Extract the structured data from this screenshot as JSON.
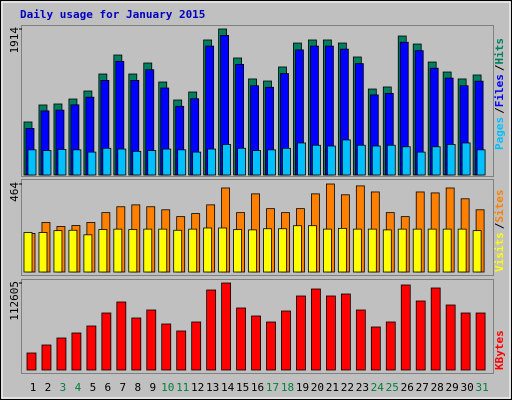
{
  "title": "Daily usage for January 2015",
  "separator": "/",
  "chart_data": [
    {
      "type": "bar",
      "ylim": [
        0,
        1914
      ],
      "yticks": [
        1914
      ],
      "series": [
        {
          "name": "Hits",
          "color": "#008060",
          "values": [
            695,
            918,
            931,
            996,
            1101,
            1324,
            1573,
            1324,
            1468,
            1219,
            983,
            1088,
            1770,
            1914,
            1534,
            1259,
            1232,
            1416,
            1730,
            1770,
            1770,
            1730,
            1547,
            1127,
            1154,
            1822,
            1717,
            1481,
            1350,
            1259,
            1311
          ]
        },
        {
          "name": "Files",
          "color": "#0000ff",
          "values": [
            610,
            840,
            850,
            920,
            1020,
            1240,
            1490,
            1240,
            1380,
            1140,
            900,
            1000,
            1690,
            1830,
            1450,
            1170,
            1150,
            1330,
            1640,
            1690,
            1690,
            1650,
            1460,
            1050,
            1070,
            1740,
            1630,
            1400,
            1270,
            1170,
            1230
          ]
        },
        {
          "name": "Pages",
          "color": "#00c0ff",
          "values": [
            330,
            320,
            335,
            330,
            300,
            350,
            340,
            310,
            320,
            340,
            330,
            300,
            340,
            400,
            350,
            320,
            330,
            350,
            420,
            390,
            380,
            460,
            390,
            380,
            390,
            370,
            300,
            370,
            400,
            420,
            330
          ]
        }
      ]
    },
    {
      "type": "bar",
      "ylim": [
        0,
        464
      ],
      "yticks": [
        464
      ],
      "series": [
        {
          "name": "Sites",
          "color": "#ff8000",
          "values": [
            203,
            261,
            240,
            245,
            261,
            313,
            344,
            354,
            344,
            328,
            292,
            308,
            354,
            443,
            313,
            412,
            334,
            313,
            334,
            412,
            464,
            407,
            454,
            422,
            313,
            292,
            422,
            417,
            443,
            386,
            328
          ]
        },
        {
          "name": "Visits",
          "color": "#ffff00",
          "values": [
            208,
            208,
            218,
            220,
            196,
            224,
            226,
            224,
            226,
            226,
            220,
            226,
            232,
            232,
            224,
            222,
            228,
            228,
            244,
            244,
            226,
            230,
            226,
            226,
            222,
            226,
            226,
            226,
            226,
            226,
            218
          ]
        }
      ]
    },
    {
      "type": "bar",
      "ylim": [
        0,
        112605
      ],
      "yticks": [
        112605
      ],
      "categories": [
        "1",
        "2",
        "3",
        "4",
        "5",
        "6",
        "7",
        "8",
        "9",
        "10",
        "11",
        "12",
        "13",
        "14",
        "15",
        "16",
        "17",
        "18",
        "19",
        "20",
        "21",
        "22",
        "23",
        "24",
        "25",
        "26",
        "27",
        "28",
        "29",
        "30",
        "31"
      ],
      "category_colors": [
        "#000000",
        "#000000",
        "#008040",
        "#008040",
        "#000000",
        "#000000",
        "#000000",
        "#000000",
        "#000000",
        "#008040",
        "#008040",
        "#000000",
        "#000000",
        "#000000",
        "#000000",
        "#000000",
        "#008040",
        "#008040",
        "#000000",
        "#000000",
        "#000000",
        "#000000",
        "#000000",
        "#008040",
        "#008040",
        "#000000",
        "#000000",
        "#000000",
        "#000000",
        "#000000",
        "#008040"
      ],
      "series": [
        {
          "name": "KBytes",
          "color": "#ff0000",
          "values": [
            22003,
            32358,
            41418,
            47890,
            56950,
            73774,
            88012,
            67303,
            77658,
            59538,
            50478,
            62126,
            103544,
            112605,
            80247,
            69892,
            62126,
            76364,
            95778,
            104838,
            95778,
            98367,
            77658,
            55655,
            62126,
            110016,
            89307,
            106132,
            84130,
            73774,
            73774
          ]
        }
      ]
    }
  ]
}
